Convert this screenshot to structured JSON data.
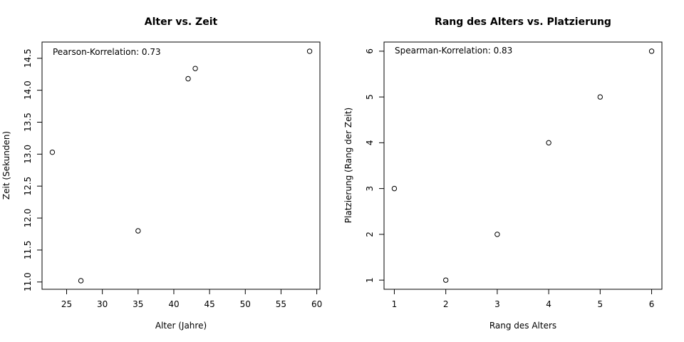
{
  "chart_data": [
    {
      "type": "scatter",
      "title": "Alter vs. Zeit",
      "xlabel": "Alter (Jahre)",
      "ylabel": "Zeit (Sekunden)",
      "annotation": "Pearson-Korrelation: 0.73",
      "x": [
        23,
        27,
        35,
        42,
        43,
        59
      ],
      "y": [
        13.03,
        11.02,
        11.8,
        14.18,
        14.34,
        14.61
      ],
      "xlim": [
        21.56,
        60.44
      ],
      "ylim": [
        10.886,
        14.754
      ],
      "xticks": [
        25,
        30,
        35,
        40,
        45,
        50,
        55,
        60
      ],
      "yticks": [
        11.0,
        11.5,
        12.0,
        12.5,
        13.0,
        13.5,
        14.0,
        14.5
      ],
      "xtick_labels": [
        "25",
        "30",
        "35",
        "40",
        "45",
        "50",
        "55",
        "60"
      ],
      "ytick_labels": [
        "11.0",
        "11.5",
        "12.0",
        "12.5",
        "13.0",
        "13.5",
        "14.0",
        "14.5"
      ],
      "grid": false
    },
    {
      "type": "scatter",
      "title": "Rang des Alters vs. Platzierung",
      "xlabel": "Rang des Alters",
      "ylabel": "Platzierung (Rang der Zeit)",
      "annotation": "Spearman-Korrelation: 0.83",
      "x": [
        1,
        2,
        3,
        4,
        5,
        6
      ],
      "y": [
        3,
        1,
        2,
        4,
        5,
        6
      ],
      "xlim": [
        0.8,
        6.2
      ],
      "ylim": [
        0.8,
        6.2
      ],
      "xticks": [
        1,
        2,
        3,
        4,
        5,
        6
      ],
      "yticks": [
        1,
        2,
        3,
        4,
        5,
        6
      ],
      "xtick_labels": [
        "1",
        "2",
        "3",
        "4",
        "5",
        "6"
      ],
      "ytick_labels": [
        "1",
        "2",
        "3",
        "4",
        "5",
        "6"
      ],
      "grid": false
    }
  ]
}
